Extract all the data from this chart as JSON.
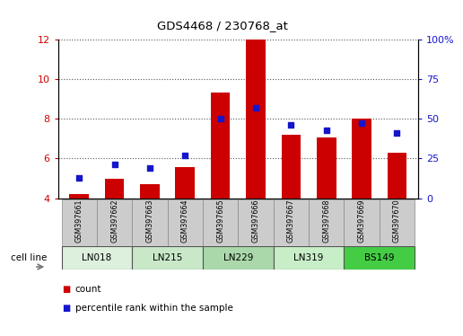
{
  "title": "GDS4468 / 230768_at",
  "samples": [
    "GSM397661",
    "GSM397662",
    "GSM397663",
    "GSM397664",
    "GSM397665",
    "GSM397666",
    "GSM397667",
    "GSM397668",
    "GSM397669",
    "GSM397670"
  ],
  "count_values": [
    4.2,
    5.0,
    4.7,
    5.55,
    9.3,
    12.0,
    7.2,
    7.05,
    8.0,
    6.3
  ],
  "percentile_values": [
    13,
    21,
    19,
    27,
    50,
    57,
    46,
    43,
    47,
    41
  ],
  "ylim_left": [
    4,
    12
  ],
  "ylim_right": [
    0,
    100
  ],
  "yticks_left": [
    4,
    6,
    8,
    10,
    12
  ],
  "yticks_right": [
    0,
    25,
    50,
    75,
    100
  ],
  "bar_color": "#cc0000",
  "dot_color": "#1515cc",
  "bar_width": 0.55,
  "cell_lines": [
    {
      "label": "LN018",
      "color": "#ddf0dd",
      "start": 0,
      "end": 1
    },
    {
      "label": "LN215",
      "color": "#c8e8c8",
      "start": 2,
      "end": 3
    },
    {
      "label": "LN229",
      "color": "#aad8aa",
      "start": 4,
      "end": 5
    },
    {
      "label": "LN319",
      "color": "#c8eec8",
      "start": 6,
      "end": 7
    },
    {
      "label": "BS149",
      "color": "#44cc44",
      "start": 8,
      "end": 9
    }
  ],
  "left_axis_color": "#cc0000",
  "right_axis_color": "#1515cc",
  "sample_box_color": "#cccccc",
  "grid_linestyle": ":",
  "grid_color": "#555555",
  "legend_count_color": "#cc0000",
  "legend_pct_color": "#1515cc",
  "cell_line_label": "cell line"
}
